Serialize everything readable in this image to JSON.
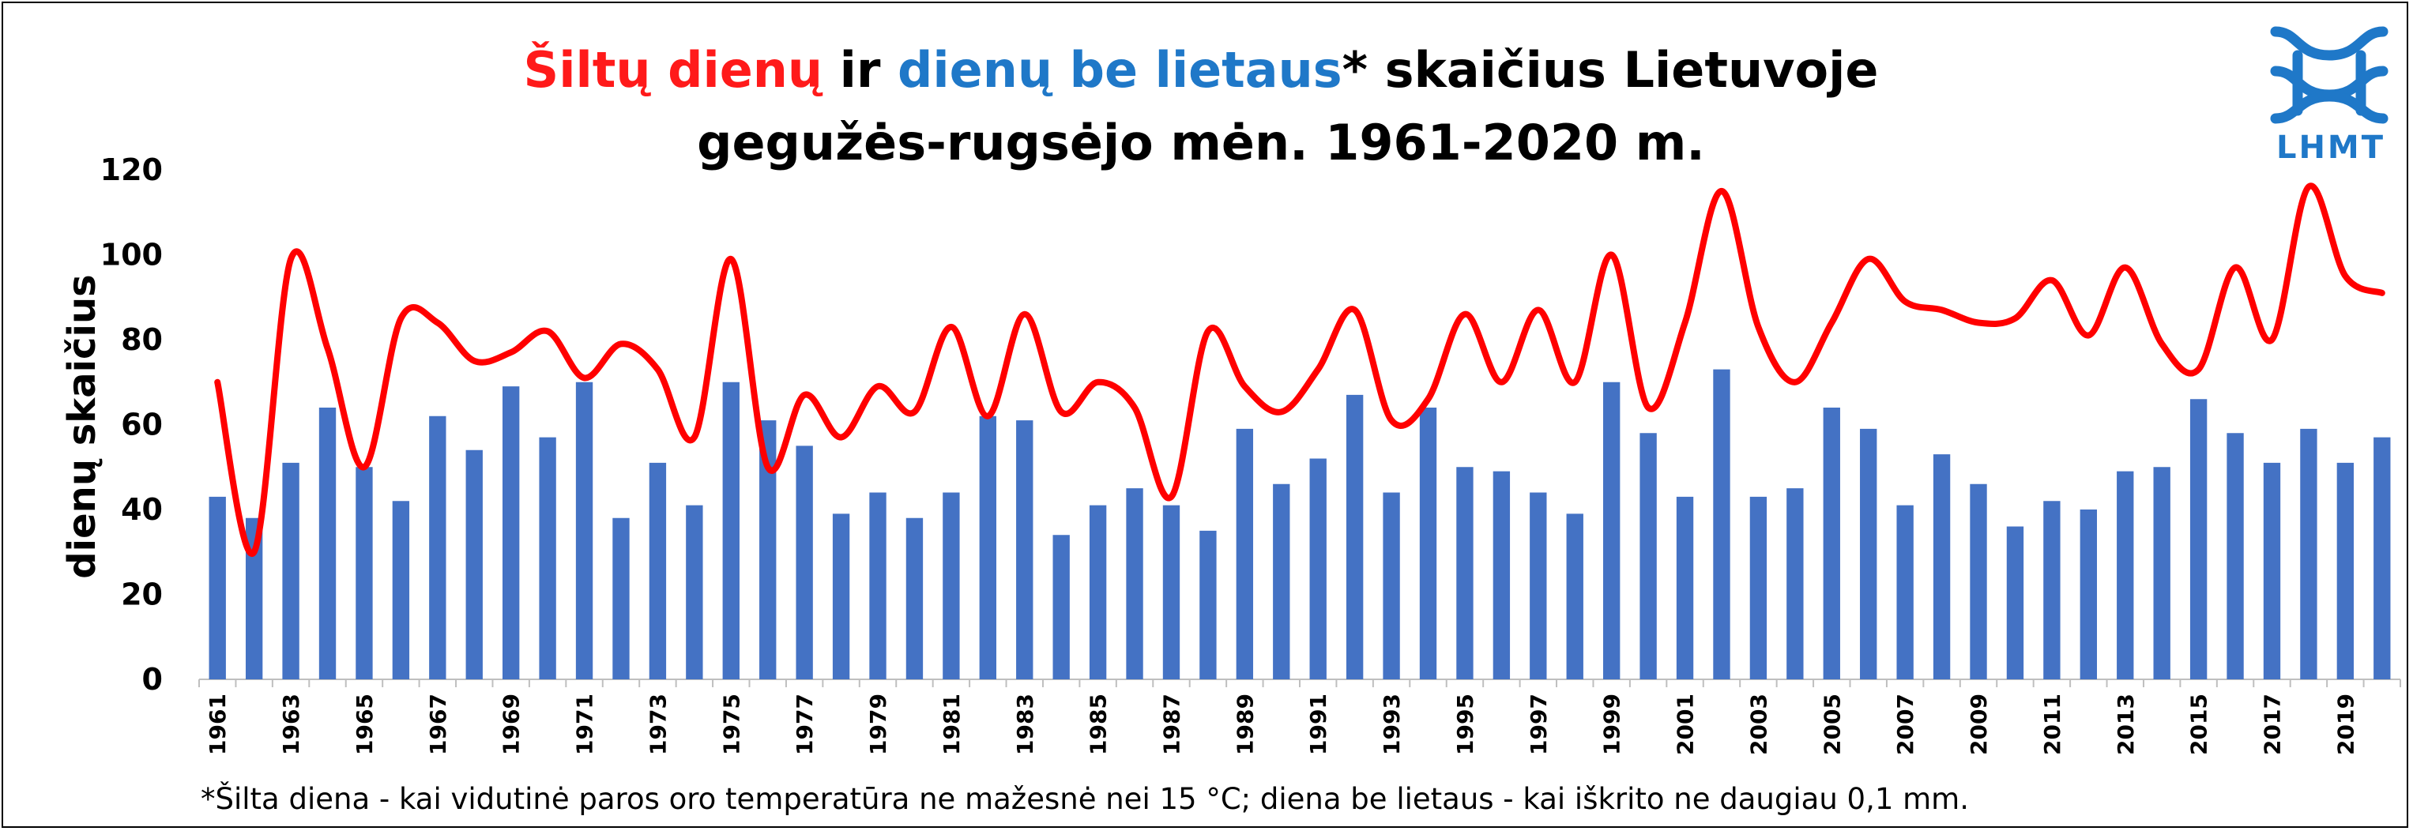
{
  "title": {
    "part_red": "Šiltų dienų",
    "part_mid": " ir ",
    "part_blue": "dienų be lietaus",
    "part_end": "* skaičius Lietuvoje",
    "line2": "gegužės-rugsėjo mėn. 1961-2020 m."
  },
  "logo": {
    "text": "LHMT",
    "icon": "wave-logo-icon",
    "color": "#1f78c8"
  },
  "footnote": "*Šilta diena - kai vidutinė paros oro temperatūra ne mažesnė nei 15 °C; diena be lietaus - kai iškrito ne daugiau 0,1 mm.",
  "chart_data": {
    "type": "bar",
    "ylabel": "dienų skaičius",
    "xlabel": "",
    "ylim": [
      0,
      120
    ],
    "yticks": [
      0,
      20,
      40,
      60,
      80,
      100,
      120
    ],
    "grid": false,
    "x_tick_labels": [
      "1961",
      "1963",
      "1965",
      "1967",
      "1969",
      "1971",
      "1973",
      "1975",
      "1977",
      "1979",
      "1981",
      "1983",
      "1985",
      "1987",
      "1989",
      "1991",
      "1993",
      "1995",
      "1997",
      "1999",
      "2001",
      "2003",
      "2005",
      "2007",
      "2009",
      "2011",
      "2013",
      "2015",
      "2017",
      "2019"
    ],
    "categories": [
      1961,
      1962,
      1963,
      1964,
      1965,
      1966,
      1967,
      1968,
      1969,
      1970,
      1971,
      1972,
      1973,
      1974,
      1975,
      1976,
      1977,
      1978,
      1979,
      1980,
      1981,
      1982,
      1983,
      1984,
      1985,
      1986,
      1987,
      1988,
      1989,
      1990,
      1991,
      1992,
      1993,
      1994,
      1995,
      1996,
      1997,
      1998,
      1999,
      2000,
      2001,
      2002,
      2003,
      2004,
      2005,
      2006,
      2007,
      2008,
      2009,
      2010,
      2011,
      2012,
      2013,
      2014,
      2015,
      2016,
      2017,
      2018,
      2019,
      2020
    ],
    "series": [
      {
        "name": "dienų be lietaus",
        "type": "bar",
        "color": "#4472c4",
        "values": [
          43,
          38,
          51,
          64,
          50,
          42,
          62,
          54,
          69,
          57,
          70,
          38,
          51,
          41,
          70,
          61,
          55,
          39,
          44,
          38,
          44,
          62,
          61,
          34,
          41,
          45,
          41,
          35,
          59,
          46,
          52,
          67,
          44,
          64,
          50,
          49,
          44,
          39,
          70,
          58,
          43,
          73,
          43,
          45,
          64,
          59,
          41,
          53,
          46,
          36,
          42,
          40,
          49,
          50,
          66,
          58,
          51,
          59,
          51,
          57
        ]
      },
      {
        "name": "Šiltų dienų",
        "type": "line",
        "color": "#ff0000",
        "values": [
          70,
          30,
          99,
          78,
          50,
          85,
          84,
          75,
          77,
          82,
          71,
          79,
          73,
          57,
          99,
          50,
          67,
          57,
          69,
          63,
          83,
          62,
          86,
          63,
          70,
          64,
          43,
          82,
          69,
          63,
          73,
          87,
          61,
          66,
          86,
          70,
          87,
          70,
          100,
          64,
          84,
          115,
          83,
          70,
          84,
          99,
          89,
          87,
          84,
          85,
          94,
          81,
          97,
          79,
          73,
          97,
          80,
          116,
          95,
          91
        ]
      }
    ]
  }
}
